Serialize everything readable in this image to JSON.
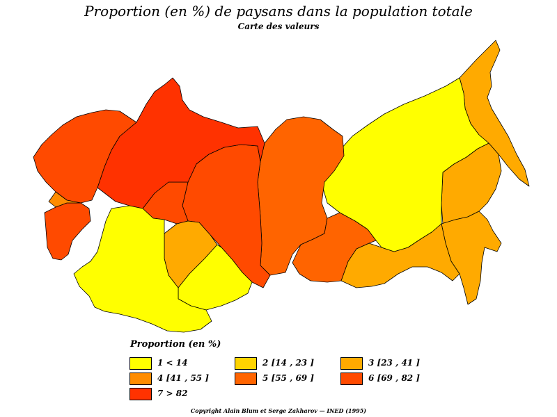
{
  "title": "Proportion (en %) de paysans dans la population totale",
  "subtitle": "Carte des valeurs",
  "legend": {
    "title": "Proportion  (en %)",
    "items": [
      {
        "label": "1  <  14",
        "color": "#ffff00"
      },
      {
        "label": "2  [14 ,  23 ]",
        "color": "#ffd400"
      },
      {
        "label": "3  [23 ,  41 ]",
        "color": "#ffaa00"
      },
      {
        "label": "4  [41 ,  55 ]",
        "color": "#ff8c00"
      },
      {
        "label": "5  [55 ,  69 ]",
        "color": "#ff6400"
      },
      {
        "label": "6  [69 ,  82 ]",
        "color": "#ff4a00"
      },
      {
        "label": "7  >  82",
        "color": "#ff3200"
      }
    ]
  },
  "copyright": "Copyright Alain Blum et Serge Zakharov  —  INED (1995)"
}
